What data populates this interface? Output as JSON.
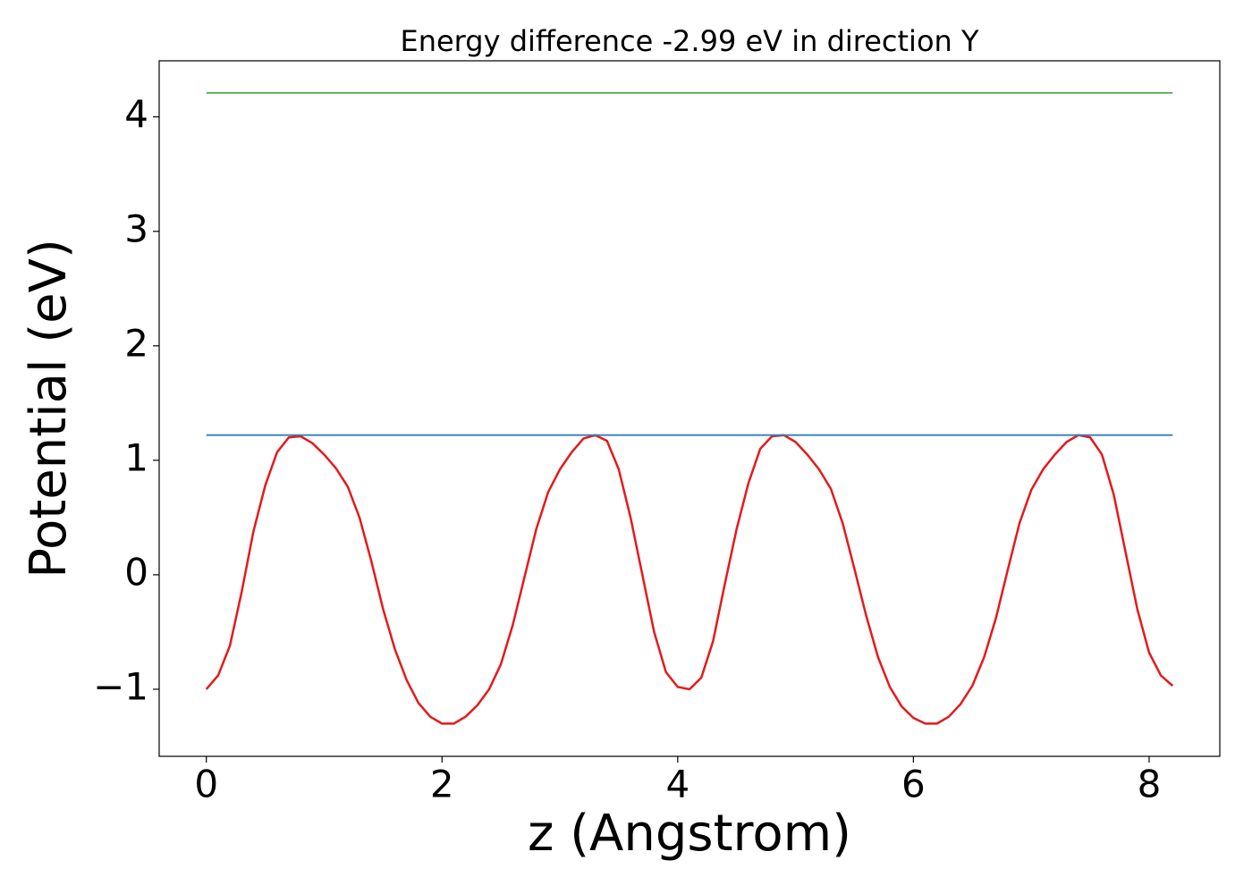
{
  "chart_data": {
    "type": "line",
    "title": "Energy difference -2.99 eV in direction Y",
    "xlabel": "z (Angstrom)",
    "ylabel": "Potential (eV)",
    "xlim": [
      -0.4,
      8.6
    ],
    "ylim": [
      -1.586,
      4.49
    ],
    "xticks": [
      0,
      2,
      4,
      6,
      8
    ],
    "yticks": [
      {
        "value": -1,
        "label": "−1"
      },
      0,
      1,
      2,
      3,
      4
    ],
    "grid": false,
    "series": [
      {
        "color": "#e41a1c",
        "x": [
          0,
          0.1,
          0.2,
          0.3,
          0.4,
          0.5,
          0.6,
          0.7,
          0.8,
          0.9,
          1.0,
          1.1,
          1.2,
          1.3,
          1.4,
          1.5,
          1.6,
          1.7,
          1.8,
          1.9,
          2.0,
          2.1,
          2.2,
          2.3,
          2.4,
          2.5,
          2.6,
          2.7,
          2.8,
          2.9,
          3.0,
          3.1,
          3.2,
          3.3,
          3.4,
          3.5,
          3.6,
          3.7,
          3.8,
          3.9,
          4.0,
          4.1,
          4.2,
          4.3,
          4.4,
          4.5,
          4.6,
          4.7,
          4.8,
          4.9,
          5.0,
          5.1,
          5.2,
          5.3,
          5.4,
          5.5,
          5.6,
          5.7,
          5.8,
          5.9,
          6.0,
          6.1,
          6.2,
          6.3,
          6.4,
          6.5,
          6.6,
          6.7,
          6.8,
          6.9,
          7.0,
          7.1,
          7.2,
          7.3,
          7.4,
          7.5,
          7.6,
          7.7,
          7.8,
          7.9,
          8.0,
          8.1,
          8.2
        ],
        "values": [
          -1.0,
          -0.88,
          -0.62,
          -0.15,
          0.38,
          0.78,
          1.07,
          1.2,
          1.21,
          1.15,
          1.05,
          0.93,
          0.77,
          0.5,
          0.12,
          -0.3,
          -0.65,
          -0.92,
          -1.12,
          -1.24,
          -1.3,
          -1.3,
          -1.24,
          -1.14,
          -1.0,
          -0.78,
          -0.44,
          -0.02,
          0.4,
          0.72,
          0.92,
          1.07,
          1.19,
          1.22,
          1.17,
          0.92,
          0.5,
          0.0,
          -0.5,
          -0.85,
          -0.98,
          -1.0,
          -0.9,
          -0.58,
          -0.08,
          0.4,
          0.8,
          1.1,
          1.21,
          1.22,
          1.16,
          1.05,
          0.92,
          0.75,
          0.45,
          0.05,
          -0.36,
          -0.72,
          -0.98,
          -1.15,
          -1.25,
          -1.3,
          -1.3,
          -1.24,
          -1.13,
          -0.97,
          -0.72,
          -0.38,
          0.04,
          0.45,
          0.74,
          0.92,
          1.05,
          1.16,
          1.22,
          1.2,
          1.05,
          0.7,
          0.2,
          -0.3,
          -0.68,
          -0.88,
          -0.97
        ]
      },
      {
        "color": "#377eb8",
        "x": [
          0,
          8.2
        ],
        "values": [
          1.22,
          1.22
        ]
      },
      {
        "color": "#4daf4a",
        "x": [
          0,
          8.2
        ],
        "values": [
          4.21,
          4.21
        ]
      }
    ]
  }
}
